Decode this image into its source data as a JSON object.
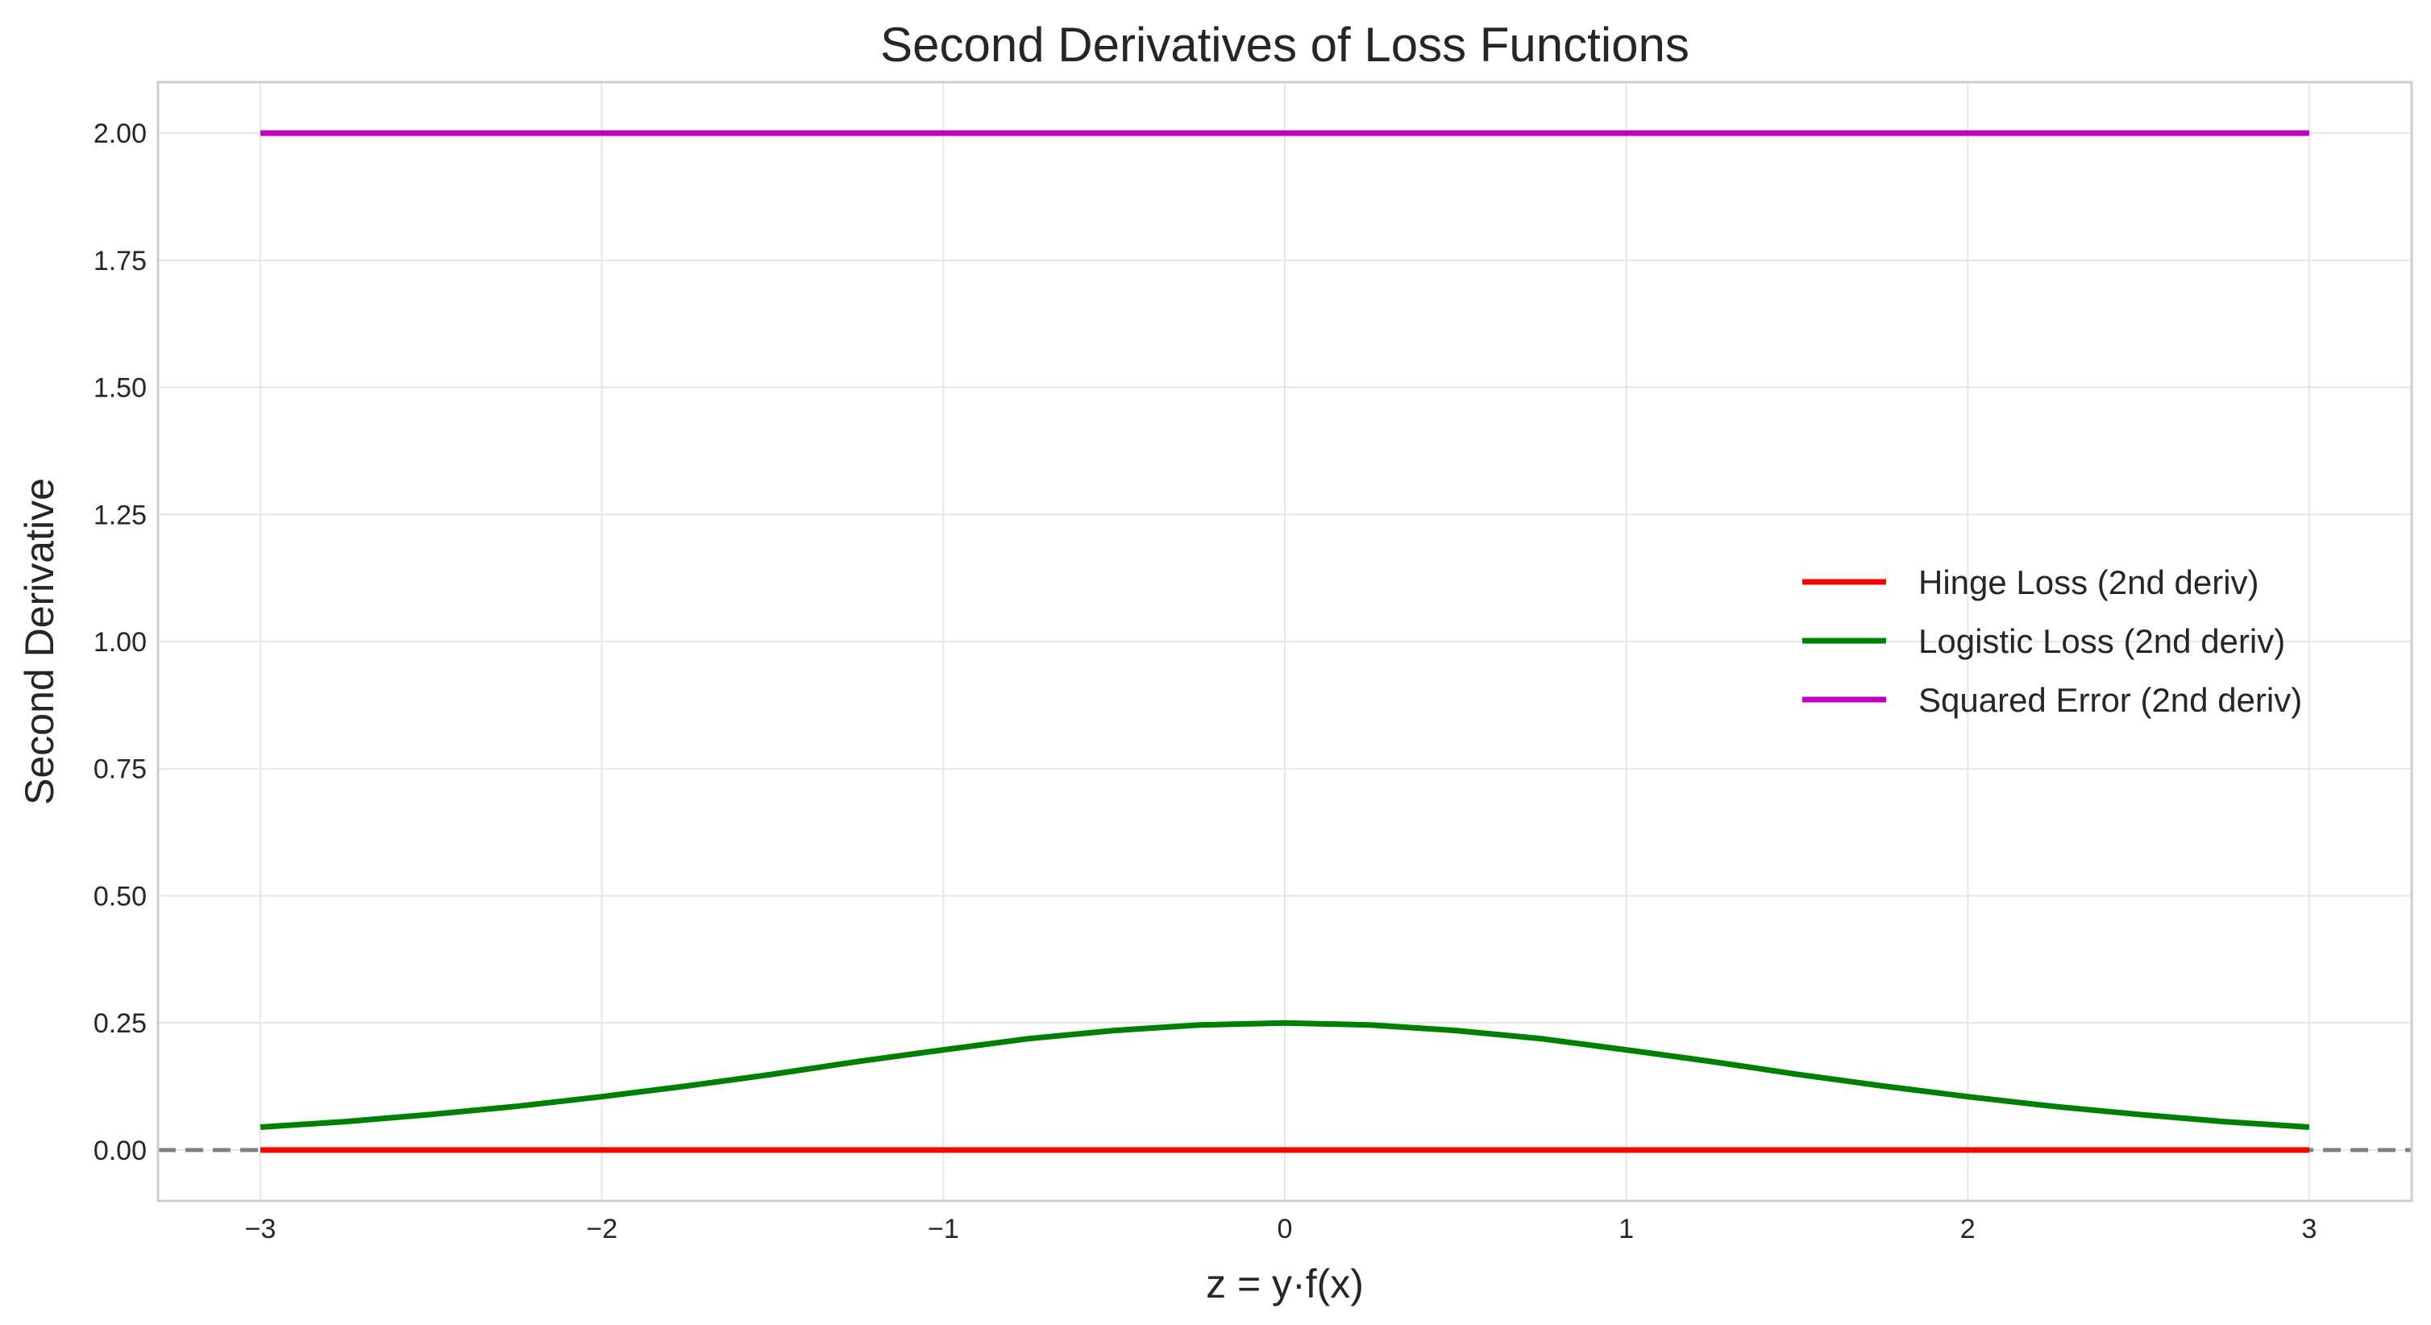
{
  "chart_data": {
    "type": "line",
    "title": "Second Derivatives of Loss Functions",
    "xlabel": "z = y·f(x)",
    "ylabel": "Second Derivative",
    "xlim": [
      -3.3,
      3.3
    ],
    "ylim": [
      -0.1,
      2.1
    ],
    "x_ticks": [
      -3,
      -2,
      -1,
      0,
      1,
      2,
      3
    ],
    "x_tick_labels": [
      "−3",
      "−2",
      "−1",
      "0",
      "1",
      "2",
      "3"
    ],
    "y_ticks": [
      0,
      0.25,
      0.5,
      0.75,
      1.0,
      1.25,
      1.5,
      1.75,
      2.0
    ],
    "y_tick_labels": [
      "0.00",
      "0.25",
      "0.50",
      "0.75",
      "1.00",
      "1.25",
      "1.50",
      "1.75",
      "2.00"
    ],
    "grid": true,
    "legend_position": "center-right",
    "reference_line": {
      "y": 0,
      "style": "dashed",
      "color": "#808080"
    },
    "series": [
      {
        "name": "Hinge Loss (2nd deriv)",
        "color": "#ff0000",
        "x": [
          -3,
          -2.5,
          -2,
          -1.5,
          -1,
          -0.5,
          0,
          0.5,
          1,
          1.5,
          2,
          2.5,
          3
        ],
        "values": [
          0,
          0,
          0,
          0,
          0,
          0,
          0,
          0,
          0,
          0,
          0,
          0,
          0
        ]
      },
      {
        "name": "Logistic Loss (2nd deriv)",
        "color": "#008000",
        "x": [
          -3,
          -2.75,
          -2.5,
          -2.25,
          -2,
          -1.75,
          -1.5,
          -1.25,
          -1,
          -0.75,
          -0.5,
          -0.25,
          0,
          0.25,
          0.5,
          0.75,
          1,
          1.25,
          1.5,
          1.75,
          2,
          2.25,
          2.5,
          2.75,
          3
        ],
        "values": [
          0.045,
          0.056,
          0.07,
          0.086,
          0.105,
          0.126,
          0.149,
          0.174,
          0.197,
          0.219,
          0.235,
          0.246,
          0.25,
          0.246,
          0.235,
          0.219,
          0.197,
          0.174,
          0.149,
          0.126,
          0.105,
          0.086,
          0.07,
          0.056,
          0.045
        ]
      },
      {
        "name": "Squared Error (2nd deriv)",
        "color": "#bf00bf",
        "x": [
          -3,
          3
        ],
        "values": [
          2,
          2
        ]
      }
    ]
  }
}
